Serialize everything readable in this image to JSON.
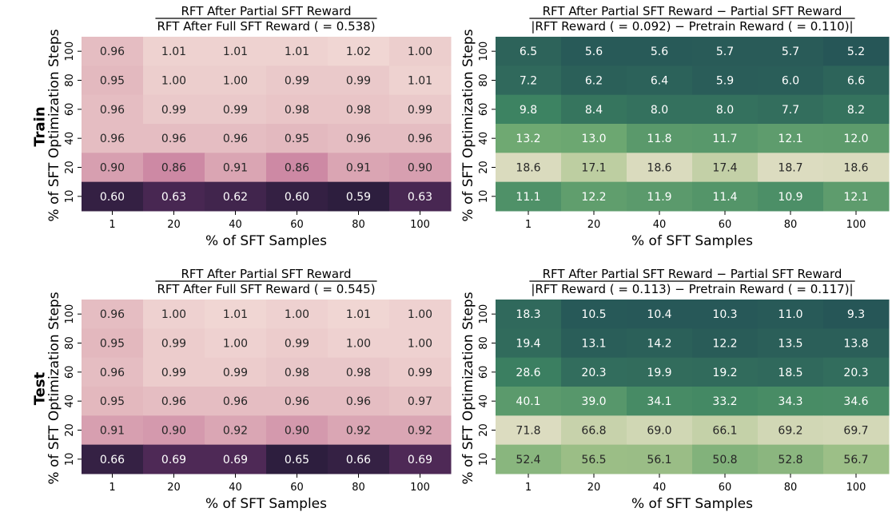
{
  "row_labels": [
    "Train",
    "Test"
  ],
  "chart_data": [
    {
      "type": "heatmap",
      "title_numerator": "RFT After Partial SFT Reward",
      "title_denominator": "RFT After Full SFT Reward ( = 0.538)",
      "xlabel": "% of SFT Samples",
      "ylabel": "% of SFT Optimization Steps",
      "x": [
        "1",
        "20",
        "40",
        "60",
        "80",
        "100"
      ],
      "y": [
        "100",
        "80",
        "60",
        "40",
        "20",
        "10"
      ],
      "values": [
        [
          "0.96",
          "1.01",
          "1.01",
          "1.01",
          "1.02",
          "1.00"
        ],
        [
          "0.95",
          "1.00",
          "1.00",
          "0.99",
          "0.99",
          "1.01"
        ],
        [
          "0.96",
          "0.99",
          "0.99",
          "0.98",
          "0.98",
          "0.99"
        ],
        [
          "0.96",
          "0.96",
          "0.96",
          "0.95",
          "0.96",
          "0.96"
        ],
        [
          "0.90",
          "0.86",
          "0.91",
          "0.86",
          "0.91",
          "0.90"
        ],
        [
          "0.60",
          "0.63",
          "0.62",
          "0.60",
          "0.59",
          "0.63"
        ]
      ],
      "colormap": "pink-to-purple"
    },
    {
      "type": "heatmap",
      "title_numerator": "RFT After Partial SFT Reward − Partial SFT Reward",
      "title_denominator": "|RFT Reward ( = 0.092) − Pretrain Reward ( = 0.110)|",
      "xlabel": "% of SFT Samples",
      "ylabel": "% of SFT Optimization Steps",
      "x": [
        "1",
        "20",
        "40",
        "60",
        "80",
        "100"
      ],
      "y": [
        "100",
        "80",
        "60",
        "40",
        "20",
        "10"
      ],
      "values": [
        [
          "6.5",
          "5.6",
          "5.6",
          "5.7",
          "5.7",
          "5.2"
        ],
        [
          "7.2",
          "6.2",
          "6.4",
          "5.9",
          "6.0",
          "6.6"
        ],
        [
          "9.8",
          "8.4",
          "8.0",
          "8.0",
          "7.7",
          "8.2"
        ],
        [
          "13.2",
          "13.0",
          "11.8",
          "11.7",
          "12.1",
          "12.0"
        ],
        [
          "18.6",
          "17.1",
          "18.6",
          "17.4",
          "18.7",
          "18.6"
        ],
        [
          "11.1",
          "12.2",
          "11.9",
          "11.4",
          "10.9",
          "12.1"
        ]
      ],
      "colormap": "green"
    },
    {
      "type": "heatmap",
      "title_numerator": "RFT After Partial SFT Reward",
      "title_denominator": "RFT After Full SFT Reward ( = 0.545)",
      "xlabel": "% of SFT Samples",
      "ylabel": "% of SFT Optimization Steps",
      "x": [
        "1",
        "20",
        "40",
        "60",
        "80",
        "100"
      ],
      "y": [
        "100",
        "80",
        "60",
        "40",
        "20",
        "10"
      ],
      "values": [
        [
          "0.96",
          "1.00",
          "1.01",
          "1.00",
          "1.01",
          "1.00"
        ],
        [
          "0.95",
          "0.99",
          "1.00",
          "0.99",
          "1.00",
          "1.00"
        ],
        [
          "0.96",
          "0.99",
          "0.99",
          "0.98",
          "0.98",
          "0.99"
        ],
        [
          "0.95",
          "0.96",
          "0.96",
          "0.96",
          "0.96",
          "0.97"
        ],
        [
          "0.91",
          "0.90",
          "0.92",
          "0.90",
          "0.92",
          "0.92"
        ],
        [
          "0.66",
          "0.69",
          "0.69",
          "0.65",
          "0.66",
          "0.69"
        ]
      ],
      "colormap": "pink-to-purple"
    },
    {
      "type": "heatmap",
      "title_numerator": "RFT After Partial SFT Reward − Partial SFT Reward",
      "title_denominator": "|RFT Reward ( = 0.113) − Pretrain Reward ( = 0.117)|",
      "xlabel": "% of SFT Samples",
      "ylabel": "% of SFT Optimization Steps",
      "x": [
        "1",
        "20",
        "40",
        "60",
        "80",
        "100"
      ],
      "y": [
        "100",
        "80",
        "60",
        "40",
        "20",
        "10"
      ],
      "values": [
        [
          "18.3",
          "10.5",
          "10.4",
          "10.3",
          "11.0",
          "9.3"
        ],
        [
          "19.4",
          "13.1",
          "14.2",
          "12.2",
          "13.5",
          "13.8"
        ],
        [
          "28.6",
          "20.3",
          "19.9",
          "19.2",
          "18.5",
          "20.3"
        ],
        [
          "40.1",
          "39.0",
          "34.1",
          "33.2",
          "34.3",
          "34.6"
        ],
        [
          "71.8",
          "66.8",
          "69.0",
          "66.1",
          "69.2",
          "69.7"
        ],
        [
          "52.4",
          "56.5",
          "56.1",
          "50.8",
          "52.8",
          "56.7"
        ]
      ],
      "colormap": "green"
    }
  ]
}
